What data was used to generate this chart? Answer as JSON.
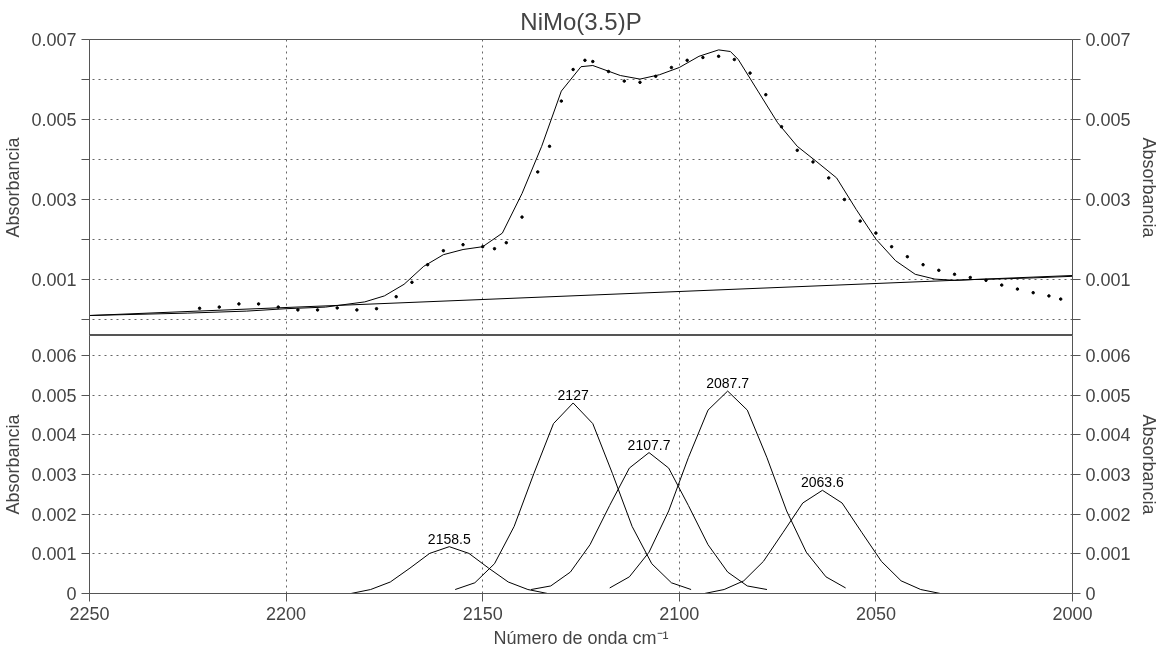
{
  "chart_data": [
    {
      "type": "line",
      "title": "NiMo(3.5)P",
      "ylabel": "Absorbancia",
      "y2label": "Absorbancia",
      "xlim": [
        2250,
        2000
      ],
      "xticks": [
        2250,
        2200,
        2150,
        2100,
        2050,
        2000
      ],
      "ylim": [
        -0.0004,
        0.007
      ],
      "yticks": [
        {
          "value": 0,
          "label": null
        },
        0.001,
        {
          "value": 0.002,
          "label": null
        },
        0.003,
        {
          "value": 0.004,
          "label": null
        },
        0.005,
        {
          "value": 0.006,
          "label": null
        },
        0.007
      ],
      "y2lim": [
        -0.0004,
        0.007
      ],
      "y2ticks": [
        {
          "value": 0,
          "label": null
        },
        0.001,
        {
          "value": 0.002,
          "label": null
        },
        0.003,
        {
          "value": 0.004,
          "label": null
        },
        0.005,
        {
          "value": 0.006,
          "label": null
        },
        0.007
      ],
      "tick_labels": "y",
      "grid": true,
      "series": [
        {
          "type": "scatter",
          "marker": "circle",
          "color": "#000000",
          "x": [
            2222,
            2217,
            2212,
            2207,
            2202,
            2197,
            2192,
            2187,
            2182,
            2177,
            2172,
            2168,
            2164,
            2160,
            2155,
            2150,
            2147,
            2144,
            2140,
            2136,
            2133,
            2130,
            2127,
            2124,
            2122,
            2118,
            2114,
            2110,
            2106,
            2102,
            2098,
            2094,
            2090,
            2086,
            2082,
            2078,
            2074,
            2070,
            2066,
            2062,
            2058,
            2054,
            2050,
            2046,
            2042,
            2038,
            2034,
            2030,
            2026,
            2022,
            2018,
            2014,
            2010,
            2006,
            2003
          ],
          "values": [
            0.00028,
            0.00031,
            0.00039,
            0.00039,
            0.00031,
            0.00024,
            0.00024,
            0.00029,
            0.00024,
            0.00027,
            0.00057,
            0.00093,
            0.00137,
            0.00172,
            0.00187,
            0.00182,
            0.00177,
            0.00192,
            0.00256,
            0.00369,
            0.00433,
            0.00546,
            0.00625,
            0.00648,
            0.00645,
            0.0062,
            0.00596,
            0.00593,
            0.00608,
            0.0063,
            0.00648,
            0.00655,
            0.00658,
            0.0065,
            0.00616,
            0.00562,
            0.00482,
            0.00423,
            0.00394,
            0.00354,
            0.003,
            0.00246,
            0.00216,
            0.00182,
            0.00157,
            0.00137,
            0.00123,
            0.00113,
            0.00105,
            0.00098,
            0.00086,
            0.00076,
            0.00067,
            0.00059,
            0.00051
          ]
        },
        {
          "color": "#000000",
          "x": [
            2250,
            2225,
            2210,
            2200,
            2190,
            2180,
            2175,
            2170,
            2165,
            2160,
            2155,
            2150,
            2145,
            2140,
            2135,
            2130,
            2125,
            2122,
            2115,
            2110,
            2105,
            2100,
            2095,
            2090,
            2087,
            2085,
            2080,
            2075,
            2070,
            2065,
            2060,
            2055,
            2050,
            2045,
            2040,
            2035,
            2030,
            2025,
            2020,
            2010,
            2000
          ],
          "values": [
            0.0001,
            0.00016,
            0.00021,
            0.00027,
            0.00031,
            0.00044,
            0.00059,
            0.00088,
            0.00133,
            0.00162,
            0.00175,
            0.00182,
            0.00216,
            0.00315,
            0.00433,
            0.00571,
            0.00632,
            0.00635,
            0.0061,
            0.00601,
            0.00612,
            0.0063,
            0.00658,
            0.00674,
            0.0067,
            0.0065,
            0.00571,
            0.00492,
            0.00433,
            0.00394,
            0.00354,
            0.00275,
            0.00201,
            0.00147,
            0.00113,
            0.00101,
            0.00098,
            0.001,
            0.00101,
            0.00104,
            0.00108
          ]
        },
        {
          "color": "#000000",
          "x": [
            2250,
            2000
          ],
          "values": [
            0.0001,
            0.0011
          ]
        }
      ]
    },
    {
      "type": "line",
      "xlabel": "Número de onda cm⁻¹",
      "ylabel": "Absorbancia",
      "y2label": "Absorbancia",
      "xlim": [
        2250,
        2000
      ],
      "xticks": [
        2250,
        2200,
        2150,
        2100,
        2050,
        2000
      ],
      "ylim": [
        0,
        0.0065
      ],
      "yticks": [
        0,
        0.001,
        0.002,
        0.003,
        0.004,
        0.005,
        0.006
      ],
      "y2lim": [
        0,
        0.0065
      ],
      "y2ticks": [
        0,
        0.001,
        0.002,
        0.003,
        0.004,
        0.005,
        0.006
      ],
      "grid": true,
      "annotations": [
        {
          "text": "2158.5",
          "x": 2158.5,
          "y": 0.00118
        },
        {
          "text": "2127",
          "x": 2127,
          "y": 0.0048
        },
        {
          "text": "2107.7",
          "x": 2107.7,
          "y": 0.00355
        },
        {
          "text": "2087.7",
          "x": 2087.7,
          "y": 0.0051
        },
        {
          "text": "2063.6",
          "x": 2063.6,
          "y": 0.0026
        }
      ],
      "series": [
        {
          "color": "#000000",
          "x": [
            2188.5,
            2183.5,
            2178.5,
            2173.5,
            2168.5,
            2163.5,
            2158.5,
            2153.5,
            2148.5,
            2143.5,
            2138.5,
            2133.5,
            2128.5
          ],
          "values": [
            0,
            0,
            0.0001,
            0.00029,
            0.00064,
            0.00101,
            0.00118,
            0.00101,
            0.00064,
            0.00029,
            0.0001,
            0,
            0
          ]
        },
        {
          "color": "#000000",
          "x": [
            2157,
            2152,
            2147,
            2142,
            2137,
            2132,
            2127,
            2122,
            2117,
            2112,
            2107,
            2102,
            2097
          ],
          "values": [
            0.0001,
            0.00027,
            0.00075,
            0.00169,
            0.00302,
            0.00428,
            0.0048,
            0.00428,
            0.00302,
            0.00169,
            0.00075,
            0.00027,
            0.0001
          ]
        },
        {
          "color": "#000000",
          "x": [
            2137.7,
            2132.7,
            2127.7,
            2122.7,
            2117.7,
            2112.7,
            2107.7,
            2102.7,
            2097.7,
            2092.7,
            2087.7,
            2082.7,
            2077.7
          ],
          "values": [
            0.0001,
            0.00019,
            0.00054,
            0.00123,
            0.00222,
            0.00316,
            0.00355,
            0.00316,
            0.00222,
            0.00123,
            0.00054,
            0.00019,
            0.0001
          ]
        },
        {
          "color": "#000000",
          "x": [
            2117.7,
            2112.7,
            2107.7,
            2102.7,
            2097.7,
            2092.7,
            2087.7,
            2082.7,
            2077.7,
            2072.7,
            2067.7,
            2062.7,
            2057.7
          ],
          "values": [
            0.00014,
            0.00042,
            0.00104,
            0.00208,
            0.00342,
            0.00462,
            0.0051,
            0.00462,
            0.00342,
            0.00208,
            0.00104,
            0.00042,
            0.00014
          ]
        },
        {
          "color": "#000000",
          "x": [
            2093.6,
            2088.6,
            2083.6,
            2078.6,
            2073.6,
            2068.6,
            2063.6,
            2058.6,
            2053.6,
            2048.6,
            2043.6,
            2038.6,
            2033.6
          ],
          "values": [
            0,
            0.0001,
            0.00032,
            0.00081,
            0.00154,
            0.00228,
            0.0026,
            0.00228,
            0.00154,
            0.00081,
            0.00032,
            0.0001,
            0
          ]
        }
      ]
    }
  ]
}
